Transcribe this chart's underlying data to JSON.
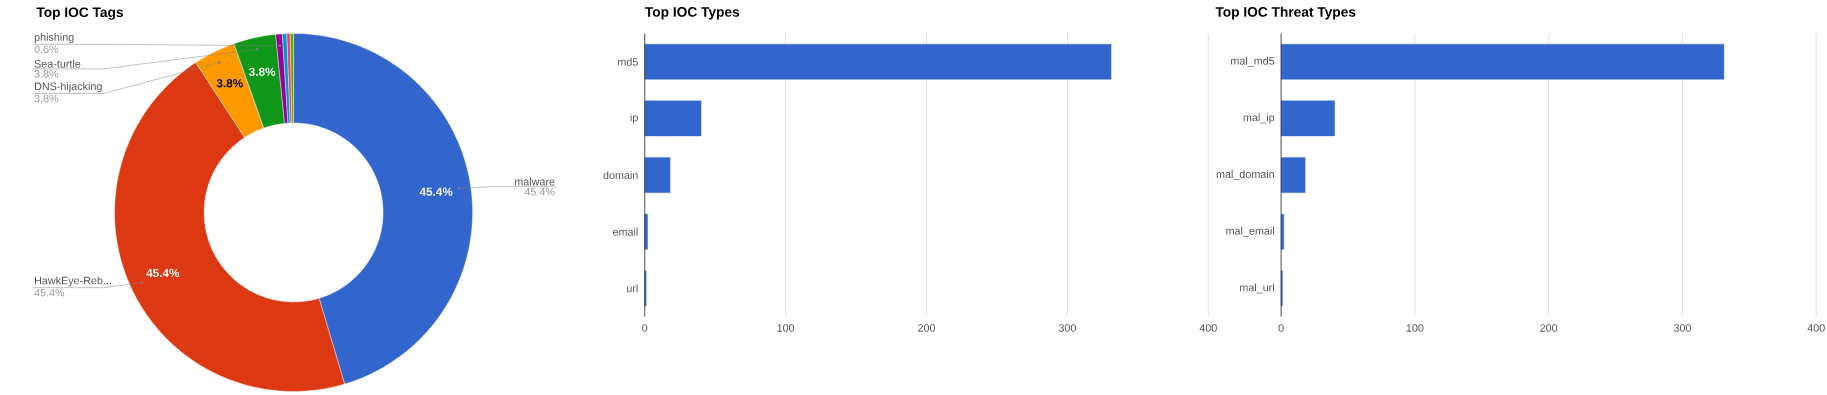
{
  "chart_data": [
    {
      "type": "donut",
      "title": "Top IOC Tags",
      "categories": [
        "malware",
        "HawkEye-Reb...",
        "DNS-hijacking",
        "Sea-turtle",
        "phishing",
        null,
        null,
        null
      ],
      "values": [
        45.4,
        45.4,
        3.8,
        3.8,
        0.6,
        0.4,
        0.3,
        0.3
      ],
      "colors": [
        "#3366cc",
        "#dc3912",
        "#ff9900",
        "#109618",
        "#990099",
        "#0099c6",
        "#dd4477",
        "#66aa00"
      ],
      "value_labels": [
        "45.4%",
        "45.4%",
        "3.8%",
        "3.8%",
        "0.6%",
        null,
        null,
        null
      ]
    },
    {
      "type": "bar",
      "orientation": "horizontal",
      "title": "Top IOC Types",
      "categories": [
        "md5",
        "ip",
        "domain",
        "email",
        "url"
      ],
      "values": [
        331,
        40,
        18,
        2,
        1
      ],
      "color": "#3366cc",
      "xlim": [
        0,
        400
      ],
      "xticks": [
        0,
        100,
        200,
        300,
        400
      ],
      "grid": "x"
    },
    {
      "type": "bar",
      "orientation": "horizontal",
      "title": "Top IOC Threat Types",
      "categories": [
        "mal_md5",
        "mal_ip",
        "mal_domain",
        "mal_email",
        "mal_url"
      ],
      "values": [
        331,
        40,
        18,
        2,
        1
      ],
      "color": "#3366cc",
      "xlim": [
        0,
        400
      ],
      "xticks": [
        0,
        100,
        200,
        300,
        400
      ],
      "grid": "x"
    }
  ]
}
